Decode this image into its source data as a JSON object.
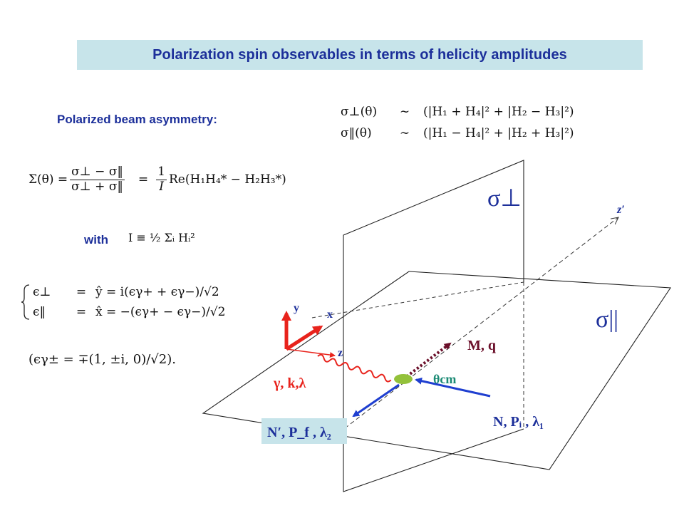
{
  "title": "Polarization spin observables in terms of helicity amplitudes",
  "beam_label": "Polarized beam asymmetry:",
  "with_label": "with",
  "equations": {
    "sigma_perp_lhs": "σ⊥(θ)",
    "sigma_par_lhs": "σ‖(θ)",
    "sim": "∼",
    "sigma_perp_rhs": "(|H₁ + H₄|² + |H₂ − H₃|²)",
    "sigma_par_rhs": "(|H₁ − H₄|² + |H₂ + H₃|²)",
    "asym_lhs": "Σ(θ) =",
    "asym_num": "σ⊥ − σ‖",
    "asym_den": "σ⊥ + σ‖",
    "eq": "=",
    "asym_coef_num": "1",
    "asym_coef_den": "I",
    "asym_rhs": "Re(H₁H₄* − H₂H₃*)",
    "norm_def": "I ≡ ½ Σᵢ Hᵢ²",
    "eps_perp_lhs": "ϵ⊥",
    "eps_perp_rhs": "ŷ = i(ϵγ+ + ϵγ−)/√2",
    "eps_par_lhs": "ϵ‖",
    "eps_par_rhs": "x̂ = −(ϵγ+ − ϵγ−)/√2",
    "eps_gamma": "(ϵγ± = ∓(1, ±i, 0)/√2)."
  },
  "diagram": {
    "sigma_perp": "σ⊥",
    "sigma_par": "σ||",
    "z_prime": "z′",
    "axis_y": "y",
    "axis_x": "x",
    "axis_z": "z",
    "meson": "M, q",
    "photon": "γ, k,λ",
    "theta": "θcm",
    "nucleon_in": "N, Pᵢ , λ₁",
    "nucleon_out": "N′, P_f , λ₂",
    "colors": {
      "sigma": "#1c2f9a",
      "axes": "#e8231c",
      "photon": "#e8231c",
      "meson": "#6b0f2a",
      "nucleon": "#1f3fd0",
      "vertex": "#93c13a",
      "theta": "#1a8a74",
      "label_box": "#c7e4ea"
    }
  }
}
